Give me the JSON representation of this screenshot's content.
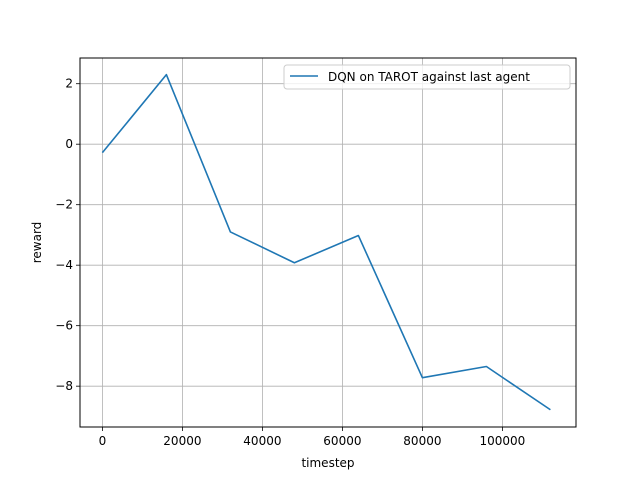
{
  "chart_data": {
    "type": "line",
    "xlabel": "timestep",
    "ylabel": "reward",
    "xlim": [
      -5600,
      118400
    ],
    "ylim": [
      -9.35,
      2.85
    ],
    "xticks": [
      0,
      20000,
      40000,
      60000,
      80000,
      100000
    ],
    "xtick_labels": [
      "0",
      "20000",
      "40000",
      "60000",
      "80000",
      "100000"
    ],
    "yticks": [
      2,
      0,
      -2,
      -4,
      -6,
      -8
    ],
    "ytick_labels": [
      "2",
      "0",
      "−2",
      "−4",
      "−6",
      "−8"
    ],
    "grid": true,
    "legend_position": "top-right",
    "series": [
      {
        "name": "DQN on TAROT against last agent",
        "color": "#1f77b4",
        "x": [
          0,
          16000,
          32000,
          48000,
          64000,
          80000,
          96000,
          112000
        ],
        "y": [
          -0.28,
          2.3,
          -2.9,
          -3.92,
          -3.02,
          -7.72,
          -7.35,
          -8.78
        ]
      }
    ]
  }
}
